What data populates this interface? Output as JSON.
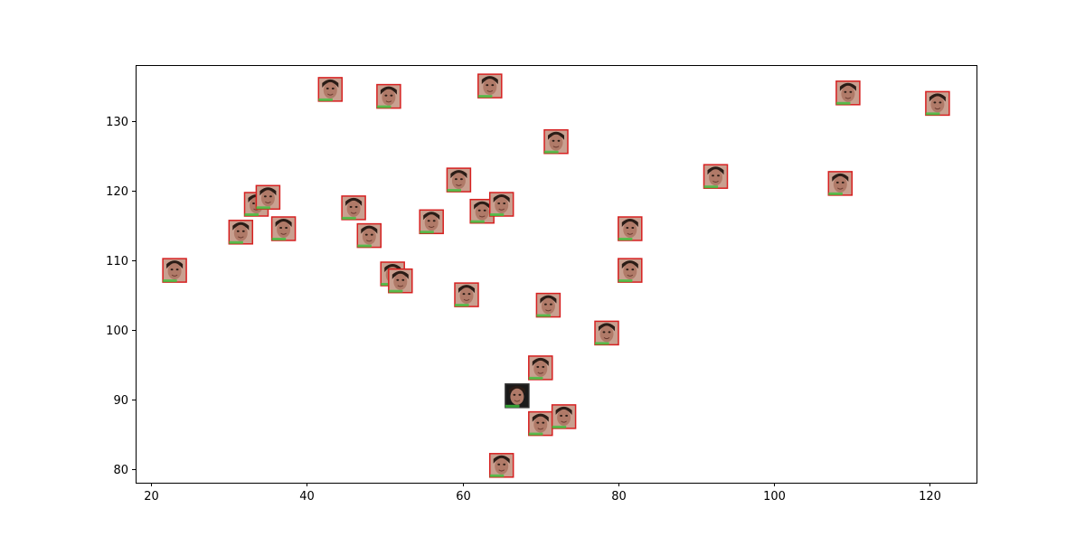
{
  "chart_data": {
    "type": "scatter",
    "title": "",
    "xlabel": "",
    "ylabel": "",
    "xlim": [
      18,
      126
    ],
    "ylim": [
      78,
      138
    ],
    "xticks": [
      20,
      40,
      60,
      80,
      100,
      120
    ],
    "yticks": [
      80,
      90,
      100,
      110,
      120,
      130
    ],
    "grid": false,
    "marker": "face-thumbnail",
    "colors": {
      "frame_red": "#d62020",
      "frame_green": "#3cc23c",
      "skin": "#b07a68",
      "hair": "#2a1c16"
    },
    "points": [
      {
        "x": 23,
        "y": 108.5
      },
      {
        "x": 31.5,
        "y": 114
      },
      {
        "x": 33.5,
        "y": 118
      },
      {
        "x": 35,
        "y": 119
      },
      {
        "x": 37,
        "y": 114.5
      },
      {
        "x": 43,
        "y": 134.5
      },
      {
        "x": 46,
        "y": 117.5
      },
      {
        "x": 48,
        "y": 113.5
      },
      {
        "x": 50.5,
        "y": 133.5
      },
      {
        "x": 51,
        "y": 108
      },
      {
        "x": 52,
        "y": 107
      },
      {
        "x": 56,
        "y": 115.5
      },
      {
        "x": 59.5,
        "y": 121.5
      },
      {
        "x": 60.5,
        "y": 105
      },
      {
        "x": 62.5,
        "y": 117
      },
      {
        "x": 63.5,
        "y": 135
      },
      {
        "x": 65,
        "y": 118
      },
      {
        "x": 65,
        "y": 80.5
      },
      {
        "x": 67,
        "y": 90.5
      },
      {
        "x": 70,
        "y": 86.5
      },
      {
        "x": 70,
        "y": 94.5
      },
      {
        "x": 71,
        "y": 103.5
      },
      {
        "x": 72,
        "y": 127
      },
      {
        "x": 73,
        "y": 87.5
      },
      {
        "x": 78.5,
        "y": 99.5
      },
      {
        "x": 81.5,
        "y": 114.5
      },
      {
        "x": 81.5,
        "y": 108.5
      },
      {
        "x": 92.5,
        "y": 122
      },
      {
        "x": 108.5,
        "y": 121
      },
      {
        "x": 109.5,
        "y": 134
      },
      {
        "x": 121,
        "y": 132.5
      }
    ]
  }
}
